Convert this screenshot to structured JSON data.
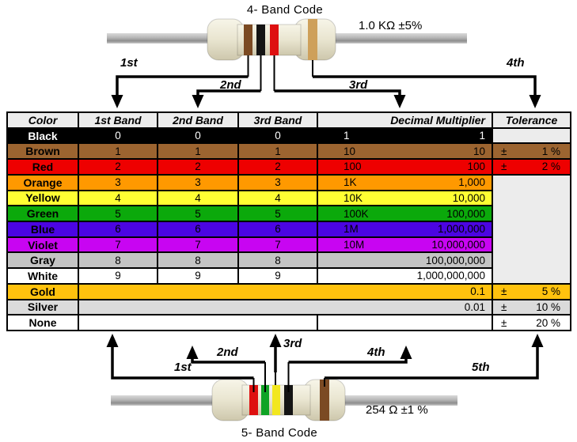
{
  "colors": {
    "table_border": "#000000",
    "header_bg": "#ECECEC",
    "blank_bg": "#ECECEC",
    "resistor_body": "#E9E5D0",
    "wire": "#AFAFAF"
  },
  "top_section": {
    "title": "4- Band Code",
    "resistor_value": "1.0 KΩ  ±5%",
    "band_colors": [
      "brown",
      "black",
      "red",
      "gold"
    ],
    "band_fills": [
      "#7B4A23",
      "#141414",
      "#DE1010",
      "#CEA05A"
    ],
    "arrow_labels": [
      "1st",
      "2nd",
      "3rd",
      "4th"
    ]
  },
  "bottom_section": {
    "title": "5- Band Code",
    "resistor_value": "254 Ω  ±1 %",
    "band_colors": [
      "red",
      "green",
      "yellow",
      "black",
      "brown"
    ],
    "band_fills": [
      "#DE1010",
      "#0FA325",
      "#F2E71E",
      "#141414",
      "#7B4A23"
    ],
    "arrow_labels": [
      "1st",
      "2nd",
      "3rd",
      "4th",
      "5th"
    ]
  },
  "table": {
    "headers": [
      "Color",
      "1st Band",
      "2nd Band",
      "3rd Band",
      "Decimal Multiplier",
      "Tolerance"
    ],
    "pm_sign": "±",
    "rows": [
      {
        "color": "Black",
        "bg": "#000000",
        "fg": "#FFFFFF",
        "b1": "0",
        "b2": "0",
        "b3": "0",
        "mult_prefix": "1",
        "mult_value": "1",
        "tolerance": null
      },
      {
        "color": "Brown",
        "bg": "#9C6430",
        "fg": "#000000",
        "b1": "1",
        "b2": "1",
        "b3": "1",
        "mult_prefix": "10",
        "mult_value": "10",
        "tolerance": "1 %"
      },
      {
        "color": "Red",
        "bg": "#EE0000",
        "fg": "#000000",
        "b1": "2",
        "b2": "2",
        "b3": "2",
        "mult_prefix": "100",
        "mult_value": "100",
        "tolerance": "2 %"
      },
      {
        "color": "Orange",
        "bg": "#FF9900",
        "fg": "#000000",
        "b1": "3",
        "b2": "3",
        "b3": "3",
        "mult_prefix": "1K",
        "mult_value": "1,000",
        "tolerance": null
      },
      {
        "color": "Yellow",
        "bg": "#FFFF33",
        "fg": "#000000",
        "b1": "4",
        "b2": "4",
        "b3": "4",
        "mult_prefix": "10K",
        "mult_value": "10,000",
        "tolerance": null
      },
      {
        "color": "Green",
        "bg": "#0BA90B",
        "fg": "#000000",
        "b1": "5",
        "b2": "5",
        "b3": "5",
        "mult_prefix": "100K",
        "mult_value": "100,000",
        "tolerance": null
      },
      {
        "color": "Blue",
        "bg": "#4B05E2",
        "fg": "#000000",
        "b1": "6",
        "b2": "6",
        "b3": "6",
        "mult_prefix": "1M",
        "mult_value": "1,000,000",
        "tolerance": null
      },
      {
        "color": "Violet",
        "bg": "#C805F2",
        "fg": "#000000",
        "b1": "7",
        "b2": "7",
        "b3": "7",
        "mult_prefix": "10M",
        "mult_value": "10,000,000",
        "tolerance": null
      },
      {
        "color": "Gray",
        "bg": "#C4C4C4",
        "fg": "#000000",
        "b1": "8",
        "b2": "8",
        "b3": "8",
        "mult_prefix": "",
        "mult_value": "100,000,000",
        "tolerance": null
      },
      {
        "color": "White",
        "bg": "#FFFFFF",
        "fg": "#000000",
        "b1": "9",
        "b2": "9",
        "b3": "9",
        "mult_prefix": "",
        "mult_value": "1,000,000,000",
        "tolerance": null
      },
      {
        "color": "Gold",
        "bg": "#FFC20E",
        "fg": "#000000",
        "merged": true,
        "mult_value": "0.1",
        "tolerance": "5 %"
      },
      {
        "color": "Silver",
        "bg": "#DBDBDB",
        "fg": "#000000",
        "merged": true,
        "mult_value": "0.01",
        "tolerance": "10 %"
      },
      {
        "color": "None",
        "bg": "#FFFFFF",
        "fg": "#000000",
        "none_row": true,
        "mult_value": "",
        "tolerance": "20 %"
      }
    ]
  }
}
